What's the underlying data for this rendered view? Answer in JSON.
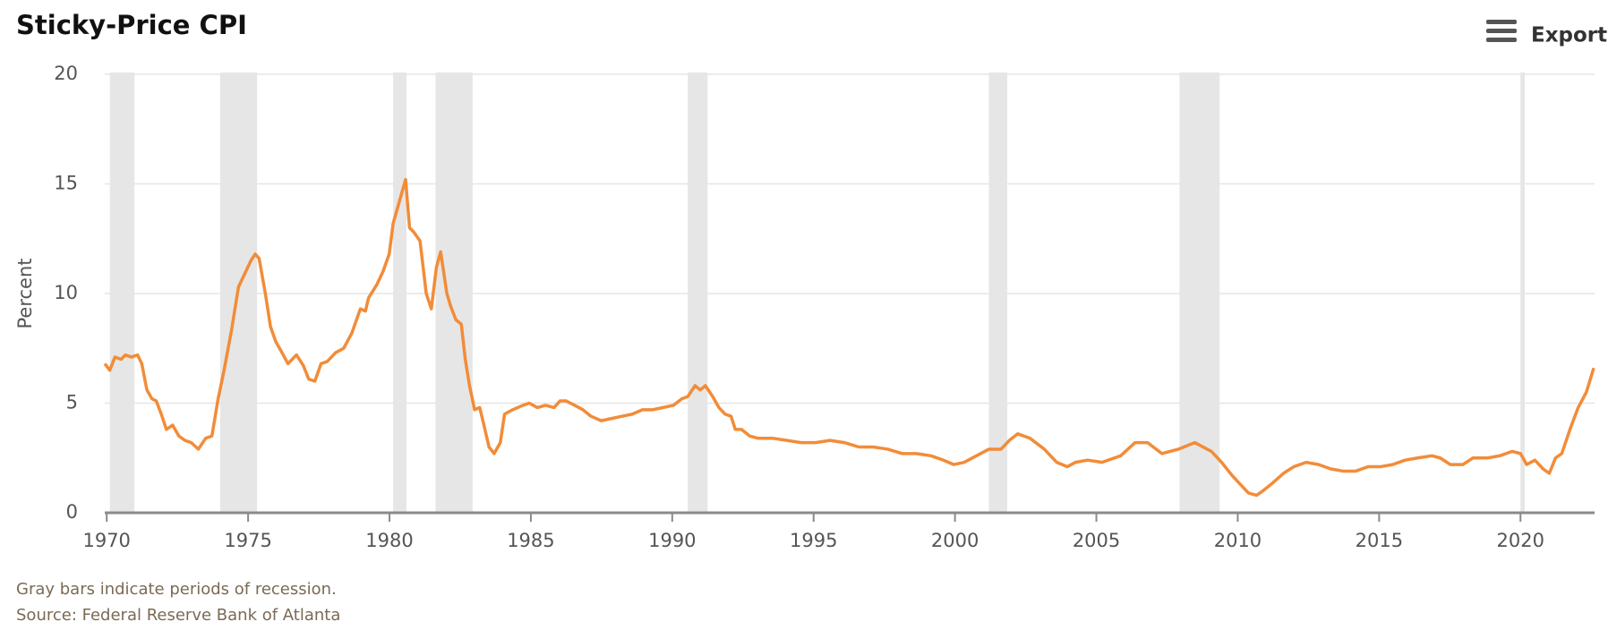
{
  "toolbar": {
    "export": "Export"
  },
  "chart_data": {
    "type": "line",
    "title": "Sticky-Price CPI",
    "y_label": "Percent",
    "notes": [
      "Gray bars indicate periods of recession.",
      "Source: Federal Reserve Bank of Atlanta"
    ],
    "color": "#f28c38",
    "recession_color": "#e6e6e6",
    "grid": true,
    "xlim": [
      1969.93,
      2022.62
    ],
    "xticks": [
      1970,
      1975,
      1980,
      1985,
      1990,
      1995,
      2000,
      2005,
      2010,
      2015,
      2020
    ],
    "ylim": [
      0,
      20
    ],
    "yticks": [
      0,
      5,
      10,
      15,
      20
    ],
    "recessions": [
      [
        1970.11,
        1970.98
      ],
      [
        1974.01,
        1975.32
      ],
      [
        1980.13,
        1980.6
      ],
      [
        1981.63,
        1982.94
      ],
      [
        1990.55,
        1991.25
      ],
      [
        2001.2,
        2001.85
      ],
      [
        2007.94,
        2009.36
      ],
      [
        2020.0,
        2020.15
      ]
    ],
    "x": [
      1969.93,
      1970.11,
      1970.29,
      1970.51,
      1970.66,
      1970.87,
      1971.09,
      1971.24,
      1971.42,
      1971.6,
      1971.75,
      1971.93,
      1972.11,
      1972.33,
      1972.55,
      1972.77,
      1972.99,
      1973.24,
      1973.5,
      1973.72,
      1973.94,
      1974.15,
      1974.41,
      1974.66,
      1974.88,
      1975.1,
      1975.25,
      1975.39,
      1975.61,
      1975.79,
      1975.98,
      1976.2,
      1976.41,
      1976.71,
      1976.96,
      1977.14,
      1977.36,
      1977.58,
      1977.8,
      1978.09,
      1978.38,
      1978.67,
      1978.97,
      1979.15,
      1979.26,
      1979.55,
      1979.77,
      1979.99,
      1980.13,
      1980.35,
      1980.57,
      1980.71,
      1980.86,
      1981.08,
      1981.3,
      1981.48,
      1981.66,
      1981.81,
      1982.03,
      1982.17,
      1982.35,
      1982.54,
      1982.68,
      1982.83,
      1983.01,
      1983.19,
      1983.34,
      1983.52,
      1983.7,
      1983.92,
      1984.07,
      1984.36,
      1984.72,
      1984.94,
      1985.23,
      1985.52,
      1985.82,
      1986.03,
      1986.25,
      1986.55,
      1986.84,
      1987.13,
      1987.49,
      1987.86,
      1988.22,
      1988.59,
      1988.95,
      1989.31,
      1989.68,
      1990.04,
      1990.34,
      1990.55,
      1990.81,
      1990.99,
      1991.17,
      1991.43,
      1991.65,
      1991.87,
      1992.08,
      1992.23,
      1992.45,
      1992.74,
      1993.03,
      1993.54,
      1994.05,
      1994.56,
      1995.07,
      1995.58,
      1996.09,
      1996.6,
      1997.11,
      1997.62,
      1998.13,
      1998.64,
      1999.15,
      1999.59,
      1999.96,
      2000.32,
      2000.76,
      2001.2,
      2001.63,
      2001.92,
      2002.22,
      2002.65,
      2003.16,
      2003.6,
      2003.97,
      2004.26,
      2004.69,
      2005.2,
      2005.86,
      2006.37,
      2006.81,
      2007.32,
      2007.9,
      2008.48,
      2009.07,
      2009.43,
      2009.8,
      2010.16,
      2010.38,
      2010.67,
      2010.89,
      2011.18,
      2011.62,
      2011.98,
      2012.42,
      2012.86,
      2013.29,
      2013.73,
      2014.17,
      2014.61,
      2015.04,
      2015.48,
      2015.92,
      2016.36,
      2016.87,
      2017.16,
      2017.52,
      2017.96,
      2018.32,
      2018.83,
      2019.27,
      2019.71,
      2020.0,
      2020.22,
      2020.51,
      2020.8,
      2021.02,
      2021.24,
      2021.46,
      2021.75,
      2022.04,
      2022.33,
      2022.59
    ],
    "values": [
      6.8,
      6.5,
      7.1,
      7.0,
      7.2,
      7.1,
      7.2,
      6.8,
      5.6,
      5.2,
      5.1,
      4.5,
      3.8,
      4.0,
      3.5,
      3.3,
      3.2,
      2.9,
      3.4,
      3.5,
      5.2,
      6.5,
      8.3,
      10.3,
      10.9,
      11.5,
      11.8,
      11.6,
      10.0,
      8.5,
      7.8,
      7.3,
      6.8,
      7.2,
      6.7,
      6.1,
      6.0,
      6.8,
      6.9,
      7.3,
      7.5,
      8.2,
      9.3,
      9.2,
      9.8,
      10.4,
      11.0,
      11.8,
      13.2,
      14.2,
      15.2,
      13.0,
      12.8,
      12.4,
      10.0,
      9.3,
      11.2,
      11.9,
      10.0,
      9.4,
      8.8,
      8.6,
      7.0,
      5.8,
      4.7,
      4.8,
      4.0,
      3.0,
      2.7,
      3.2,
      4.5,
      4.7,
      4.9,
      5.0,
      4.8,
      4.9,
      4.8,
      5.1,
      5.1,
      4.9,
      4.7,
      4.4,
      4.2,
      4.3,
      4.4,
      4.5,
      4.7,
      4.7,
      4.8,
      4.9,
      5.2,
      5.3,
      5.8,
      5.6,
      5.8,
      5.3,
      4.8,
      4.5,
      4.4,
      3.8,
      3.8,
      3.5,
      3.4,
      3.4,
      3.3,
      3.2,
      3.2,
      3.3,
      3.2,
      3.0,
      3.0,
      2.9,
      2.7,
      2.7,
      2.6,
      2.4,
      2.2,
      2.3,
      2.6,
      2.9,
      2.9,
      3.3,
      3.6,
      3.4,
      2.9,
      2.3,
      2.1,
      2.3,
      2.4,
      2.3,
      2.6,
      3.2,
      3.2,
      2.7,
      2.9,
      3.2,
      2.8,
      2.3,
      1.7,
      1.2,
      0.9,
      0.8,
      1.0,
      1.3,
      1.8,
      2.1,
      2.3,
      2.2,
      2.0,
      1.9,
      1.9,
      2.1,
      2.1,
      2.2,
      2.4,
      2.5,
      2.6,
      2.5,
      2.2,
      2.2,
      2.5,
      2.5,
      2.6,
      2.8,
      2.7,
      2.2,
      2.4,
      2.0,
      1.8,
      2.5,
      2.7,
      3.8,
      4.8,
      5.5,
      6.6
    ]
  }
}
